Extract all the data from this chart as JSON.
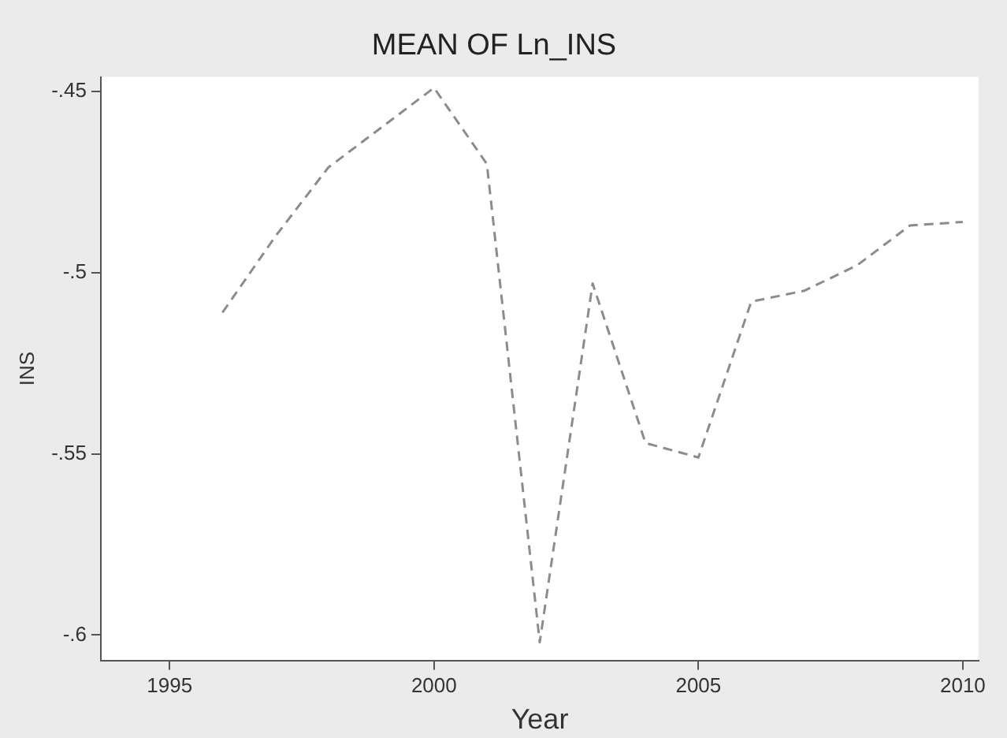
{
  "chart_data": {
    "type": "line",
    "title": "MEAN OF Ln_INS",
    "xlabel": "Year",
    "ylabel": "INS",
    "x": [
      1996,
      1997,
      1998,
      1999,
      2000,
      2001,
      2002,
      2003,
      2004,
      2005,
      2006,
      2007,
      2008,
      2009,
      2010
    ],
    "series": [
      {
        "color": "#8c8c8c",
        "values": [
          -0.511,
          -0.49,
          -0.471,
          -0.46,
          -0.449,
          -0.47,
          -0.602,
          -0.503,
          -0.547,
          -0.551,
          -0.508,
          -0.505,
          -0.498,
          -0.487,
          -0.486
        ]
      }
    ],
    "xlim": [
      1993.7,
      2010.3
    ],
    "xticks": [
      1995,
      2000,
      2005,
      2010
    ],
    "ylim": [
      -0.607,
      -0.446
    ],
    "yticks": [
      {
        "value": -0.45,
        "label": "-.45"
      },
      {
        "value": -0.5,
        "label": "-.5"
      },
      {
        "value": -0.55,
        "label": "-.55"
      },
      {
        "value": -0.6,
        "label": "-.6"
      }
    ],
    "grid": false,
    "legend": false,
    "marker": "none",
    "line_style": "dashed"
  }
}
